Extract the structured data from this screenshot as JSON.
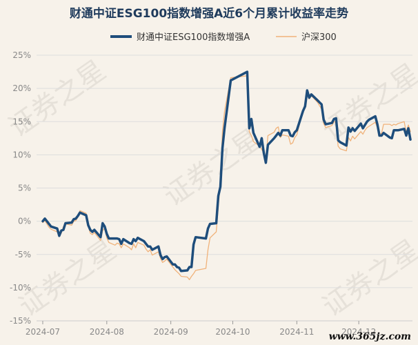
{
  "chart_data": {
    "type": "line",
    "title": "财通中证ESG100指数增强A近6个月累计收益率走势",
    "xlabel": "",
    "ylabel": "",
    "ylim": [
      -15,
      25
    ],
    "yticks": [
      25,
      20,
      15,
      10,
      5,
      0,
      -5,
      -10,
      -15
    ],
    "ytick_labels": [
      "25%",
      "20%",
      "15%",
      "10%",
      "5%",
      "0%",
      "-5%",
      "-10%",
      "-15%"
    ],
    "xticks": [
      "2024-07",
      "2024-08",
      "2024-09",
      "2024-10",
      "2024-11",
      "2024-12"
    ],
    "grid": true,
    "legend_position": "top",
    "colors": {
      "fund": "#1e4d7b",
      "index": "#f0b27a",
      "title": "#1f3b5c",
      "grid": "#dddddd",
      "background": "#f7f2ea"
    },
    "series": [
      {
        "name": "财通中证ESG100指数增强A",
        "values": [
          [
            "2024-07-01",
            0.0
          ],
          [
            "2024-07-02",
            0.4
          ],
          [
            "2024-07-03",
            0.0
          ],
          [
            "2024-07-04",
            -0.4
          ],
          [
            "2024-07-05",
            -0.8
          ],
          [
            "2024-07-08",
            -1.1
          ],
          [
            "2024-07-09",
            -2.2
          ],
          [
            "2024-07-10",
            -1.4
          ],
          [
            "2024-07-11",
            -1.3
          ],
          [
            "2024-07-12",
            -0.3
          ],
          [
            "2024-07-15",
            -0.2
          ],
          [
            "2024-07-16",
            0.3
          ],
          [
            "2024-07-17",
            0.4
          ],
          [
            "2024-07-18",
            0.8
          ],
          [
            "2024-07-19",
            1.3
          ],
          [
            "2024-07-22",
            0.9
          ],
          [
            "2024-07-23",
            -0.6
          ],
          [
            "2024-07-24",
            -1.3
          ],
          [
            "2024-07-25",
            -1.6
          ],
          [
            "2024-07-26",
            -1.3
          ],
          [
            "2024-07-29",
            -2.4
          ],
          [
            "2024-07-30",
            -0.3
          ],
          [
            "2024-07-31",
            -0.8
          ],
          [
            "2024-08-01",
            -1.9
          ],
          [
            "2024-08-02",
            -2.6
          ],
          [
            "2024-08-05",
            -2.6
          ],
          [
            "2024-08-06",
            -2.6
          ],
          [
            "2024-08-07",
            -2.7
          ],
          [
            "2024-08-08",
            -3.4
          ],
          [
            "2024-08-09",
            -2.7
          ],
          [
            "2024-08-12",
            -3.3
          ],
          [
            "2024-08-13",
            -3.4
          ],
          [
            "2024-08-14",
            -2.7
          ],
          [
            "2024-08-15",
            -3.0
          ],
          [
            "2024-08-16",
            -2.5
          ],
          [
            "2024-08-19",
            -3.0
          ],
          [
            "2024-08-20",
            -3.4
          ],
          [
            "2024-08-21",
            -3.8
          ],
          [
            "2024-08-22",
            -3.8
          ],
          [
            "2024-08-23",
            -4.3
          ],
          [
            "2024-08-26",
            -3.8
          ],
          [
            "2024-08-27",
            -5.1
          ],
          [
            "2024-08-28",
            -5.7
          ],
          [
            "2024-08-29",
            -5.4
          ],
          [
            "2024-08-30",
            -5.3
          ],
          [
            "2024-09-02",
            -6.5
          ],
          [
            "2024-09-03",
            -6.5
          ],
          [
            "2024-09-04",
            -6.9
          ],
          [
            "2024-09-05",
            -7.0
          ],
          [
            "2024-09-06",
            -7.5
          ],
          [
            "2024-09-09",
            -7.4
          ],
          [
            "2024-09-10",
            -6.9
          ],
          [
            "2024-09-11",
            -6.9
          ],
          [
            "2024-09-12",
            -3.5
          ],
          [
            "2024-09-13",
            -2.4
          ],
          [
            "2024-09-18",
            -2.6
          ],
          [
            "2024-09-19",
            -1.1
          ],
          [
            "2024-09-20",
            -0.4
          ],
          [
            "2024-09-23",
            -0.3
          ],
          [
            "2024-09-24",
            3.8
          ],
          [
            "2024-09-25",
            5.2
          ],
          [
            "2024-09-26",
            11.0
          ],
          [
            "2024-09-27",
            14.0
          ],
          [
            "2024-09-30",
            21.2
          ],
          [
            "2024-10-08",
            22.5
          ],
          [
            "2024-10-09",
            14.0
          ],
          [
            "2024-10-10",
            15.4
          ],
          [
            "2024-10-11",
            13.3
          ],
          [
            "2024-10-14",
            11.2
          ],
          [
            "2024-10-15",
            12.5
          ],
          [
            "2024-10-16",
            10.3
          ],
          [
            "2024-10-17",
            8.8
          ],
          [
            "2024-10-18",
            11.5
          ],
          [
            "2024-10-21",
            12.5
          ],
          [
            "2024-10-22",
            12.9
          ],
          [
            "2024-10-23",
            13.3
          ],
          [
            "2024-10-24",
            12.9
          ],
          [
            "2024-10-25",
            13.7
          ],
          [
            "2024-10-28",
            13.7
          ],
          [
            "2024-10-29",
            12.9
          ],
          [
            "2024-10-30",
            12.8
          ],
          [
            "2024-10-31",
            13.4
          ],
          [
            "2024-11-01",
            13.7
          ],
          [
            "2024-11-04",
            16.6
          ],
          [
            "2024-11-05",
            17.3
          ],
          [
            "2024-11-06",
            19.7
          ],
          [
            "2024-11-07",
            18.6
          ],
          [
            "2024-11-08",
            19.1
          ],
          [
            "2024-11-11",
            18.2
          ],
          [
            "2024-11-12",
            17.9
          ],
          [
            "2024-11-13",
            17.6
          ],
          [
            "2024-11-14",
            15.3
          ],
          [
            "2024-11-15",
            14.6
          ],
          [
            "2024-11-18",
            14.8
          ],
          [
            "2024-11-19",
            15.4
          ],
          [
            "2024-11-20",
            15.5
          ],
          [
            "2024-11-21",
            12.2
          ],
          [
            "2024-11-22",
            11.9
          ],
          [
            "2024-11-25",
            11.4
          ],
          [
            "2024-11-26",
            14.1
          ],
          [
            "2024-11-27",
            13.5
          ],
          [
            "2024-11-28",
            14.0
          ],
          [
            "2024-11-29",
            13.6
          ],
          [
            "2024-12-02",
            14.7
          ],
          [
            "2024-12-03",
            14.0
          ],
          [
            "2024-12-04",
            14.5
          ],
          [
            "2024-12-05",
            15.0
          ],
          [
            "2024-12-06",
            15.3
          ],
          [
            "2024-12-09",
            15.8
          ],
          [
            "2024-12-10",
            14.6
          ],
          [
            "2024-12-11",
            12.9
          ],
          [
            "2024-12-12",
            12.9
          ],
          [
            "2024-12-13",
            13.3
          ],
          [
            "2024-12-16",
            12.6
          ],
          [
            "2024-12-17",
            12.5
          ],
          [
            "2024-12-18",
            13.7
          ],
          [
            "2024-12-19",
            13.7
          ],
          [
            "2024-12-20",
            13.7
          ],
          [
            "2024-12-23",
            13.9
          ],
          [
            "2024-12-24",
            12.9
          ],
          [
            "2024-12-25",
            14.0
          ],
          [
            "2024-12-26",
            12.3
          ]
        ]
      },
      {
        "name": "沪深300",
        "values": [
          [
            "2024-07-01",
            -0.2
          ],
          [
            "2024-07-02",
            0.1
          ],
          [
            "2024-07-03",
            -0.4
          ],
          [
            "2024-07-04",
            -0.9
          ],
          [
            "2024-07-05",
            -1.2
          ],
          [
            "2024-07-08",
            -1.6
          ],
          [
            "2024-07-09",
            -1.9
          ],
          [
            "2024-07-10",
            -1.8
          ],
          [
            "2024-07-11",
            -0.8
          ],
          [
            "2024-07-12",
            -0.4
          ],
          [
            "2024-07-15",
            -0.6
          ],
          [
            "2024-07-16",
            0.0
          ],
          [
            "2024-07-17",
            0.1
          ],
          [
            "2024-07-18",
            0.6
          ],
          [
            "2024-07-19",
            1.6
          ],
          [
            "2024-07-22",
            1.2
          ],
          [
            "2024-07-23",
            -0.7
          ],
          [
            "2024-07-24",
            -1.8
          ],
          [
            "2024-07-25",
            -2.0
          ],
          [
            "2024-07-26",
            -1.7
          ],
          [
            "2024-07-29",
            -2.9
          ],
          [
            "2024-07-30",
            -1.4
          ],
          [
            "2024-07-31",
            -1.1
          ],
          [
            "2024-08-01",
            -2.5
          ],
          [
            "2024-08-02",
            -3.2
          ],
          [
            "2024-08-05",
            -3.6
          ],
          [
            "2024-08-06",
            -3.3
          ],
          [
            "2024-08-07",
            -3.4
          ],
          [
            "2024-08-08",
            -4.0
          ],
          [
            "2024-08-09",
            -3.4
          ],
          [
            "2024-08-12",
            -4.0
          ],
          [
            "2024-08-13",
            -4.3
          ],
          [
            "2024-08-14",
            -3.4
          ],
          [
            "2024-08-15",
            -4.0
          ],
          [
            "2024-08-16",
            -3.2
          ],
          [
            "2024-08-19",
            -3.6
          ],
          [
            "2024-08-20",
            -4.2
          ],
          [
            "2024-08-21",
            -4.6
          ],
          [
            "2024-08-22",
            -4.3
          ],
          [
            "2024-08-23",
            -5.1
          ],
          [
            "2024-08-26",
            -4.6
          ],
          [
            "2024-08-27",
            -5.6
          ],
          [
            "2024-08-28",
            -6.2
          ],
          [
            "2024-08-29",
            -6.0
          ],
          [
            "2024-08-30",
            -5.7
          ],
          [
            "2024-09-02",
            -6.9
          ],
          [
            "2024-09-03",
            -7.3
          ],
          [
            "2024-09-04",
            -7.6
          ],
          [
            "2024-09-05",
            -7.9
          ],
          [
            "2024-09-06",
            -8.3
          ],
          [
            "2024-09-09",
            -8.4
          ],
          [
            "2024-09-10",
            -8.8
          ],
          [
            "2024-09-11",
            -8.3
          ],
          [
            "2024-09-12",
            -7.9
          ],
          [
            "2024-09-13",
            -7.4
          ],
          [
            "2024-09-18",
            -7.1
          ],
          [
            "2024-09-19",
            -4.3
          ],
          [
            "2024-09-20",
            -2.5
          ],
          [
            "2024-09-23",
            -1.6
          ],
          [
            "2024-09-24",
            2.2
          ],
          [
            "2024-09-25",
            6.0
          ],
          [
            "2024-09-26",
            13.5
          ],
          [
            "2024-09-27",
            16.5
          ],
          [
            "2024-09-30",
            21.6
          ],
          [
            "2024-10-08",
            21.9
          ],
          [
            "2024-10-09",
            13.5
          ],
          [
            "2024-10-10",
            12.9
          ],
          [
            "2024-10-11",
            12.0
          ],
          [
            "2024-10-14",
            11.3
          ],
          [
            "2024-10-15",
            10.8
          ],
          [
            "2024-10-16",
            10.3
          ],
          [
            "2024-10-17",
            9.2
          ],
          [
            "2024-10-18",
            12.9
          ],
          [
            "2024-10-21",
            13.4
          ],
          [
            "2024-10-22",
            14.0
          ],
          [
            "2024-10-23",
            14.2
          ],
          [
            "2024-10-24",
            12.6
          ],
          [
            "2024-10-25",
            13.0
          ],
          [
            "2024-10-28",
            12.8
          ],
          [
            "2024-10-29",
            11.6
          ],
          [
            "2024-10-30",
            11.8
          ],
          [
            "2024-10-31",
            12.6
          ],
          [
            "2024-11-01",
            13.0
          ],
          [
            "2024-11-04",
            16.7
          ],
          [
            "2024-11-05",
            17.0
          ],
          [
            "2024-11-06",
            19.2
          ],
          [
            "2024-11-07",
            18.4
          ],
          [
            "2024-11-08",
            18.9
          ],
          [
            "2024-11-11",
            17.9
          ],
          [
            "2024-11-12",
            17.4
          ],
          [
            "2024-11-13",
            16.9
          ],
          [
            "2024-11-14",
            14.7
          ],
          [
            "2024-11-15",
            14.1
          ],
          [
            "2024-11-18",
            14.4
          ],
          [
            "2024-11-19",
            15.0
          ],
          [
            "2024-11-20",
            14.9
          ],
          [
            "2024-11-21",
            11.3
          ],
          [
            "2024-11-22",
            10.9
          ],
          [
            "2024-11-25",
            10.6
          ],
          [
            "2024-11-26",
            12.6
          ],
          [
            "2024-11-27",
            12.1
          ],
          [
            "2024-11-28",
            12.8
          ],
          [
            "2024-11-29",
            12.4
          ],
          [
            "2024-12-02",
            13.5
          ],
          [
            "2024-12-03",
            13.1
          ],
          [
            "2024-12-04",
            13.7
          ],
          [
            "2024-12-05",
            14.1
          ],
          [
            "2024-12-06",
            14.3
          ],
          [
            "2024-12-09",
            14.9
          ],
          [
            "2024-12-10",
            14.1
          ],
          [
            "2024-12-11",
            13.2
          ],
          [
            "2024-12-12",
            13.2
          ],
          [
            "2024-12-13",
            14.6
          ],
          [
            "2024-12-16",
            14.6
          ],
          [
            "2024-12-17",
            14.4
          ],
          [
            "2024-12-18",
            14.6
          ],
          [
            "2024-12-19",
            14.5
          ],
          [
            "2024-12-20",
            14.7
          ],
          [
            "2024-12-23",
            15.0
          ],
          [
            "2024-12-24",
            13.3
          ],
          [
            "2024-12-25",
            14.5
          ],
          [
            "2024-12-26",
            13.5
          ]
        ]
      }
    ]
  },
  "watermark": {
    "text": "证券之星"
  },
  "site": {
    "text": "www.365jz.com"
  }
}
